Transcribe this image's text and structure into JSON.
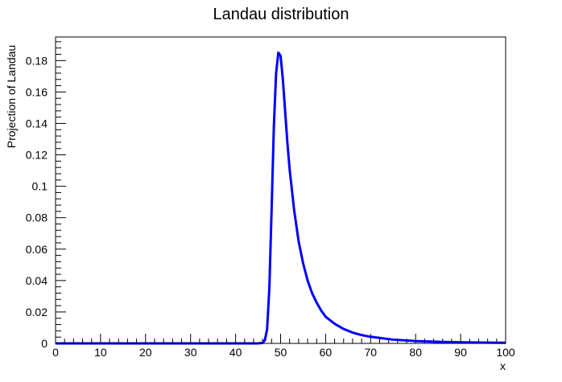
{
  "chart_data": {
    "type": "line",
    "title": "Landau distribution",
    "xlabel": "x",
    "ylabel": "Projection of Landau",
    "xlim": [
      0,
      100
    ],
    "ylim": [
      0,
      0.195
    ],
    "x_ticks": [
      0,
      10,
      20,
      30,
      40,
      50,
      60,
      70,
      80,
      90,
      100
    ],
    "x_tick_labels": [
      "0",
      "10",
      "20",
      "30",
      "40",
      "50",
      "60",
      "70",
      "80",
      "90",
      "100"
    ],
    "y_ticks": [
      0,
      0.02,
      0.04,
      0.06,
      0.08,
      0.1,
      0.12,
      0.14,
      0.16,
      0.18
    ],
    "y_tick_labels": [
      "0",
      "0.02",
      "0.04",
      "0.06",
      "0.08",
      "0.1",
      "0.12",
      "0.14",
      "0.16",
      "0.18"
    ],
    "grid": false,
    "series": [
      {
        "color": "#0000ff",
        "x": [
          0,
          10,
          20,
          30,
          40,
          45,
          46,
          46.5,
          47,
          47.5,
          48,
          48.5,
          49,
          49.5,
          50,
          50.5,
          51,
          51.5,
          52,
          53,
          54,
          55,
          56,
          57,
          58,
          59,
          60,
          62,
          64,
          66,
          68,
          70,
          75,
          80,
          85,
          90,
          95,
          100
        ],
        "y": [
          0,
          0,
          0,
          0,
          0,
          0,
          0.0003,
          0.002,
          0.009,
          0.035,
          0.085,
          0.138,
          0.172,
          0.185,
          0.183,
          0.168,
          0.148,
          0.128,
          0.111,
          0.085,
          0.065,
          0.051,
          0.04,
          0.032,
          0.026,
          0.021,
          0.017,
          0.0125,
          0.0092,
          0.0069,
          0.0053,
          0.0042,
          0.0024,
          0.0015,
          0.001,
          0.0007,
          0.0005,
          0.0004
        ]
      }
    ]
  }
}
